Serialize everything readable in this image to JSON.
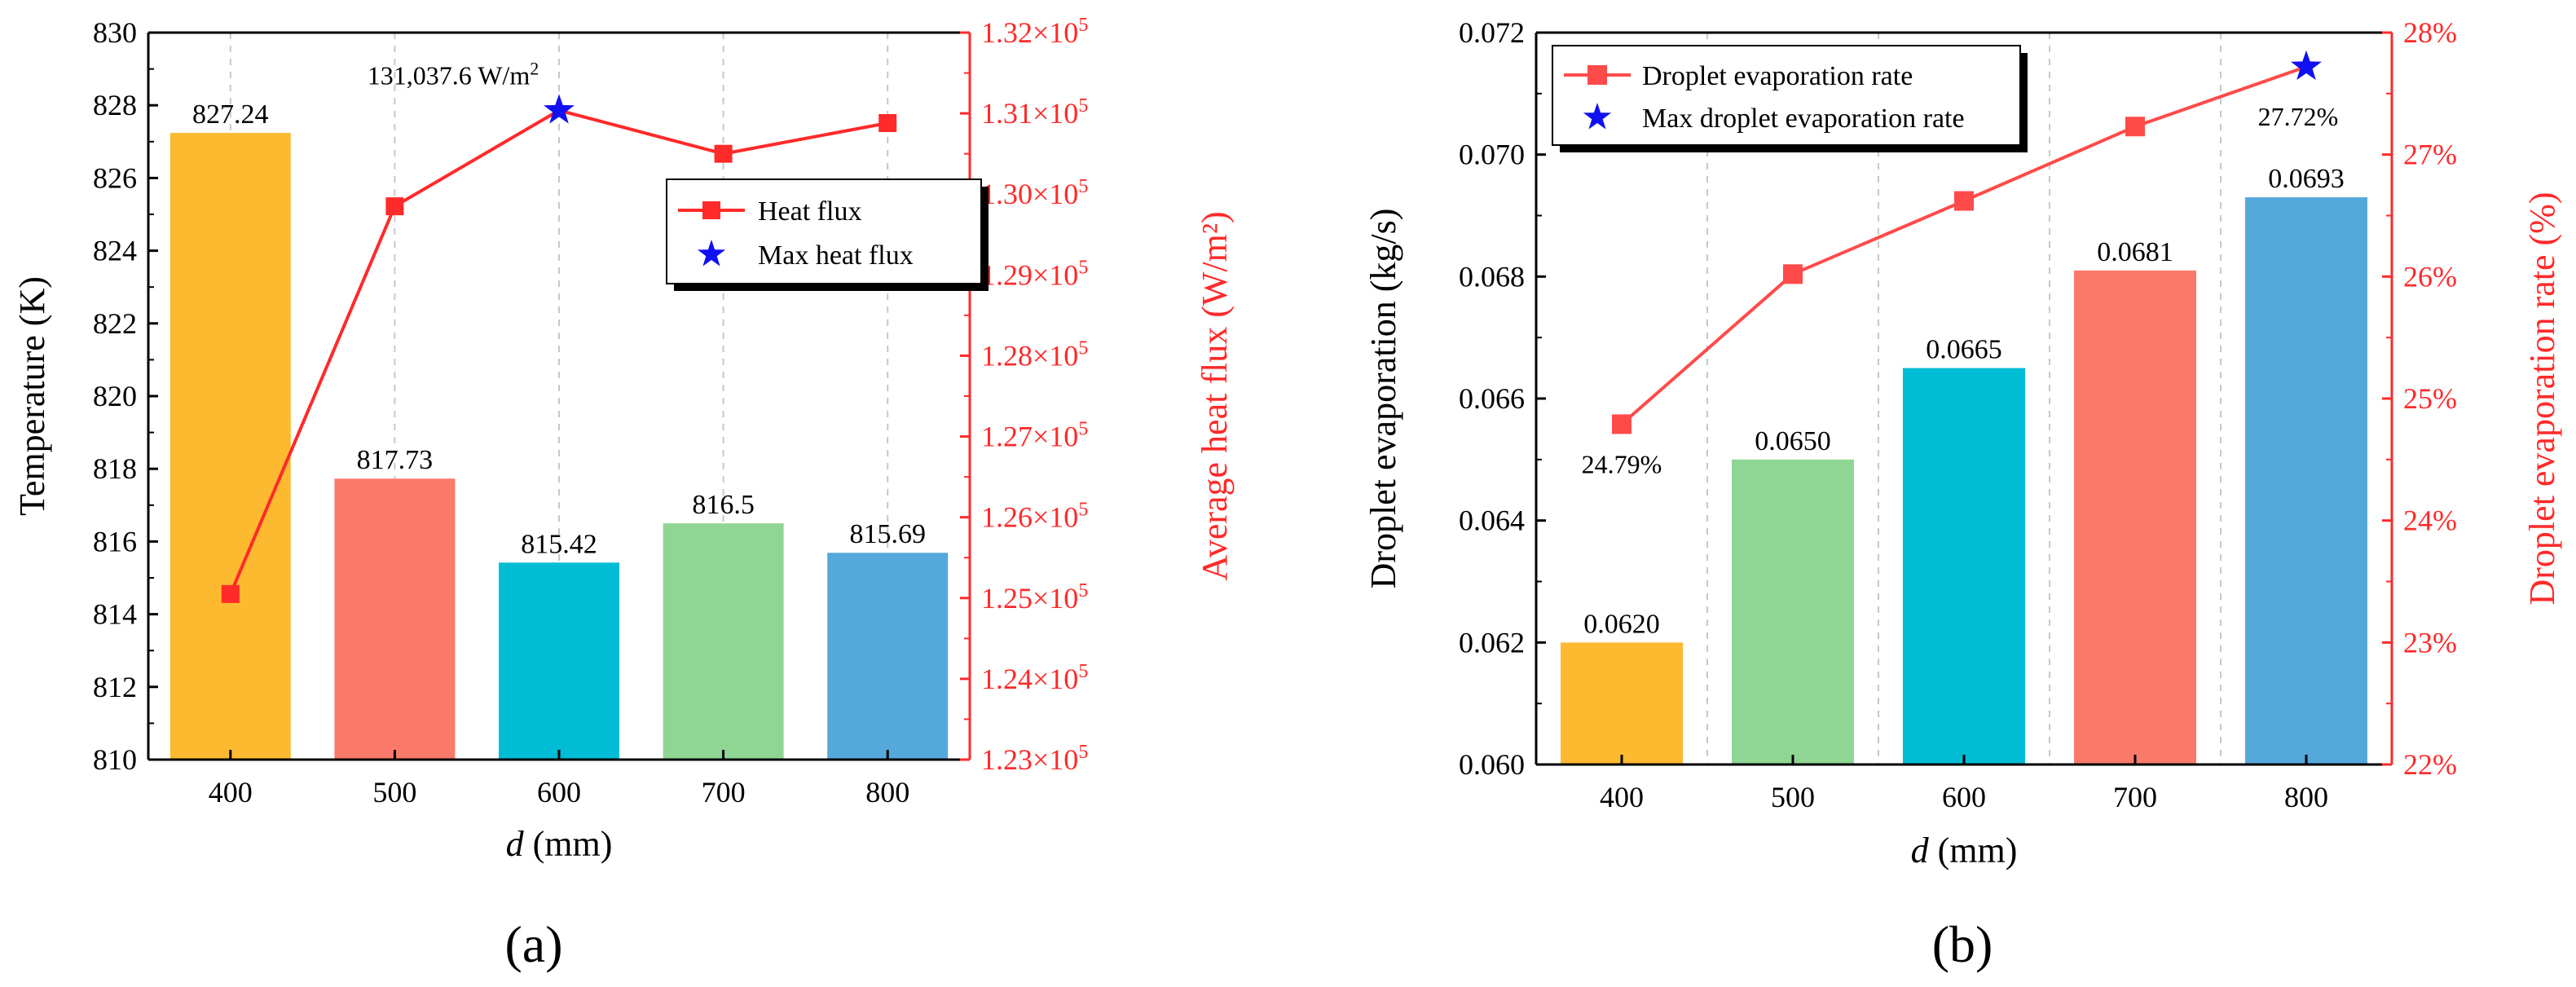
{
  "chart_data": [
    {
      "panel": "(a)",
      "type": "bar+line",
      "xlabel_italic": "d",
      "xlabel_rest": " (mm)",
      "ylabel": "Temperature (K)",
      "ylabel_right": "Average heat flux (W/m²)",
      "categories": [
        "400",
        "500",
        "600",
        "700",
        "800"
      ],
      "ylim": [
        810,
        830
      ],
      "yticks": [
        810,
        812,
        814,
        816,
        818,
        820,
        822,
        824,
        826,
        828,
        830
      ],
      "y2lim": [
        123000,
        132000
      ],
      "y2ticks": [
        {
          "mant": "1.23",
          "exp": "5",
          "value": 123000
        },
        {
          "mant": "1.24",
          "exp": "5",
          "value": 124000
        },
        {
          "mant": "1.25",
          "exp": "5",
          "value": 125000
        },
        {
          "mant": "1.26",
          "exp": "5",
          "value": 126000
        },
        {
          "mant": "1.27",
          "exp": "5",
          "value": 127000
        },
        {
          "mant": "1.28",
          "exp": "5",
          "value": 128000
        },
        {
          "mant": "1.29",
          "exp": "5",
          "value": 129000
        },
        {
          "mant": "1.30",
          "exp": "5",
          "value": 130000
        },
        {
          "mant": "1.31",
          "exp": "5",
          "value": 131000
        },
        {
          "mant": "1.32",
          "exp": "5",
          "value": 132000
        }
      ],
      "bars": {
        "name": "Temperature",
        "values": [
          827.24,
          817.73,
          815.42,
          816.5,
          815.69
        ],
        "labels": [
          "827.24",
          "817.73",
          "815.42",
          "816.5",
          "815.69"
        ],
        "colors": [
          "#fdb930",
          "#fa7a6a",
          "#00bcd4",
          "#8fd694",
          "#55a8dc"
        ]
      },
      "line": {
        "name": "Heat flux",
        "values": [
          125050,
          129850,
          131037.6,
          130500,
          130880
        ],
        "color": "#ff2a2a"
      },
      "max": {
        "name": "Max heat flux",
        "index": 2,
        "value": 131037.6,
        "label": "131,037.6 W/m",
        "label_sup": "2",
        "color": "#1010f0"
      },
      "legend": [
        "Heat flux",
        "Max heat flux"
      ]
    },
    {
      "panel": "(b)",
      "type": "bar+line",
      "xlabel_italic": "d",
      "xlabel_rest": " (mm)",
      "ylabel": "Droplet evaporation (kg/s)",
      "ylabel_right": "Droplet evaporation rate (%)",
      "categories": [
        "400",
        "500",
        "600",
        "700",
        "800"
      ],
      "ylim": [
        0.06,
        0.072
      ],
      "yticks": [
        "0.060",
        "0.062",
        "0.064",
        "0.066",
        "0.068",
        "0.070",
        "0.072"
      ],
      "y2lim": [
        22,
        28
      ],
      "y2ticks": [
        "22%",
        "23%",
        "24%",
        "25%",
        "26%",
        "27%",
        "28%"
      ],
      "bars": {
        "name": "Droplet evaporation",
        "values": [
          0.062,
          0.065,
          0.0665,
          0.0681,
          0.0693
        ],
        "labels": [
          "0.0620",
          "0.0650",
          "0.0665",
          "0.0681",
          "0.0693"
        ],
        "colors": [
          "#fdb930",
          "#8fd694",
          "#00bcd4",
          "#fa7a6a",
          "#55a8dc"
        ]
      },
      "line": {
        "name": "Droplet evaporation rate",
        "values": [
          24.79,
          26.02,
          26.62,
          27.23,
          27.72
        ],
        "color": "#ff4a4a"
      },
      "min_label": {
        "index": 0,
        "text": "24.79%"
      },
      "max": {
        "name": "Max droplet evaporation rate",
        "index": 4,
        "value": 27.72,
        "label": "27.72%",
        "color": "#1010f0"
      },
      "legend": [
        "Droplet evaporation rate",
        "Max droplet evaporation rate"
      ]
    }
  ]
}
